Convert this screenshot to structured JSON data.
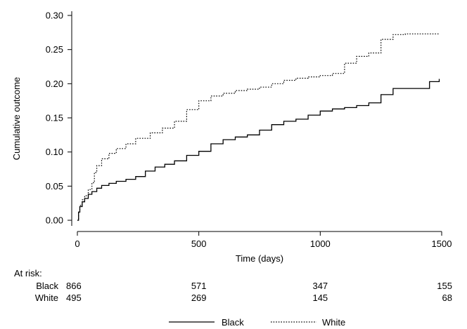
{
  "chart_data": {
    "type": "line",
    "title": "",
    "xlabel": "Time (days)",
    "ylabel": "Cumulative outcome",
    "xlim": [
      0,
      1500
    ],
    "ylim": [
      0,
      0.3
    ],
    "x_ticks": [
      0,
      500,
      1000,
      1500
    ],
    "y_ticks": [
      0.0,
      0.05,
      0.1,
      0.15,
      0.2,
      0.25,
      0.3
    ],
    "y_tick_labels": [
      "0.00",
      "0.05",
      "0.10",
      "0.15",
      "0.20",
      "0.25",
      "0.30"
    ],
    "grid": false,
    "legend_position": "bottom",
    "series": [
      {
        "name": "Black",
        "line_style": "solid",
        "color": "#000000",
        "x": [
          0,
          5,
          10,
          20,
          30,
          45,
          60,
          80,
          100,
          130,
          160,
          200,
          240,
          280,
          320,
          360,
          400,
          450,
          500,
          550,
          600,
          650,
          700,
          750,
          800,
          850,
          900,
          950,
          1000,
          1050,
          1100,
          1150,
          1200,
          1250,
          1300,
          1350,
          1400,
          1450,
          1490
        ],
        "y": [
          0.0,
          0.012,
          0.02,
          0.027,
          0.032,
          0.038,
          0.042,
          0.047,
          0.051,
          0.054,
          0.057,
          0.06,
          0.064,
          0.072,
          0.078,
          0.082,
          0.087,
          0.095,
          0.101,
          0.112,
          0.118,
          0.122,
          0.125,
          0.132,
          0.14,
          0.145,
          0.148,
          0.154,
          0.16,
          0.163,
          0.165,
          0.168,
          0.172,
          0.184,
          0.193,
          0.193,
          0.193,
          0.203,
          0.207
        ]
      },
      {
        "name": "White",
        "line_style": "dotted",
        "color": "#000000",
        "x": [
          0,
          5,
          10,
          20,
          30,
          45,
          60,
          70,
          80,
          100,
          130,
          160,
          200,
          240,
          300,
          350,
          400,
          450,
          500,
          550,
          600,
          650,
          700,
          750,
          800,
          850,
          900,
          950,
          1000,
          1050,
          1100,
          1150,
          1200,
          1250,
          1300,
          1350,
          1400,
          1450,
          1490
        ],
        "y": [
          0.0,
          0.012,
          0.022,
          0.03,
          0.036,
          0.045,
          0.055,
          0.07,
          0.08,
          0.09,
          0.098,
          0.105,
          0.112,
          0.12,
          0.128,
          0.135,
          0.145,
          0.162,
          0.175,
          0.182,
          0.186,
          0.19,
          0.192,
          0.195,
          0.2,
          0.205,
          0.208,
          0.21,
          0.212,
          0.215,
          0.23,
          0.24,
          0.245,
          0.265,
          0.272,
          0.273,
          0.273,
          0.273,
          0.273
        ]
      }
    ],
    "at_risk": {
      "title": "At risk:",
      "rows": [
        {
          "label": "Black",
          "values": [
            "866",
            "571",
            "347",
            "155"
          ]
        },
        {
          "label": "White",
          "values": [
            "495",
            "269",
            "145",
            "68"
          ]
        }
      ]
    }
  }
}
